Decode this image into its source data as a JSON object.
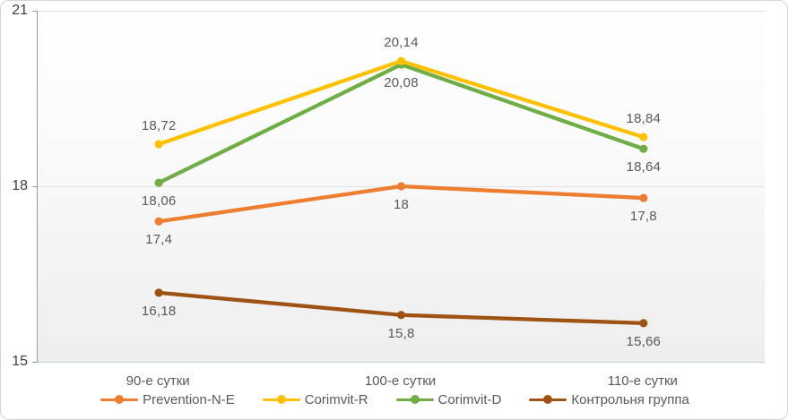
{
  "chart_data": {
    "type": "line",
    "title": "",
    "xlabel": "",
    "ylabel": "",
    "categories": [
      "90-е сутки",
      "100-е сутки",
      "110-е сутки"
    ],
    "series": [
      {
        "name": "Prevention-N-E",
        "color": "#ED7D31",
        "values": [
          17.4,
          18,
          17.8
        ],
        "point_labels": [
          "17,4",
          "18",
          "17,8"
        ],
        "label_side": "below"
      },
      {
        "name": "Corimvit-R",
        "color": "#FFC000",
        "values": [
          18.72,
          20.14,
          18.84
        ],
        "point_labels": [
          "18,72",
          "20,14",
          "18,84"
        ],
        "label_side": "above"
      },
      {
        "name": "Corimvit-D",
        "color": "#70AD47",
        "values": [
          18.06,
          20.08,
          18.64
        ],
        "point_labels": [
          "18,06",
          "20,08",
          "18,64"
        ],
        "label_side": "below"
      },
      {
        "name": "Контрольня группа",
        "color": "#9E5213",
        "values": [
          16.18,
          15.8,
          15.66
        ],
        "point_labels": [
          "16,18",
          "15,8",
          "15,66"
        ],
        "label_side": "below"
      }
    ],
    "ylim": [
      15,
      21
    ],
    "yticks": [
      21,
      18,
      15
    ],
    "ytick_labels": [
      "21",
      "18",
      "15"
    ],
    "grid": "horizontal-major",
    "legend_position": "bottom",
    "marker": "circle"
  },
  "style": {
    "gridline_color": "#e2e2e2",
    "axis_line_color": "#8aa0b2",
    "x_axis_line_color": "#c2cfd8",
    "data_label_color": "#595959",
    "ytick_label_color": "#3f3f3f",
    "chart_border_color": "#d6d6d6"
  }
}
